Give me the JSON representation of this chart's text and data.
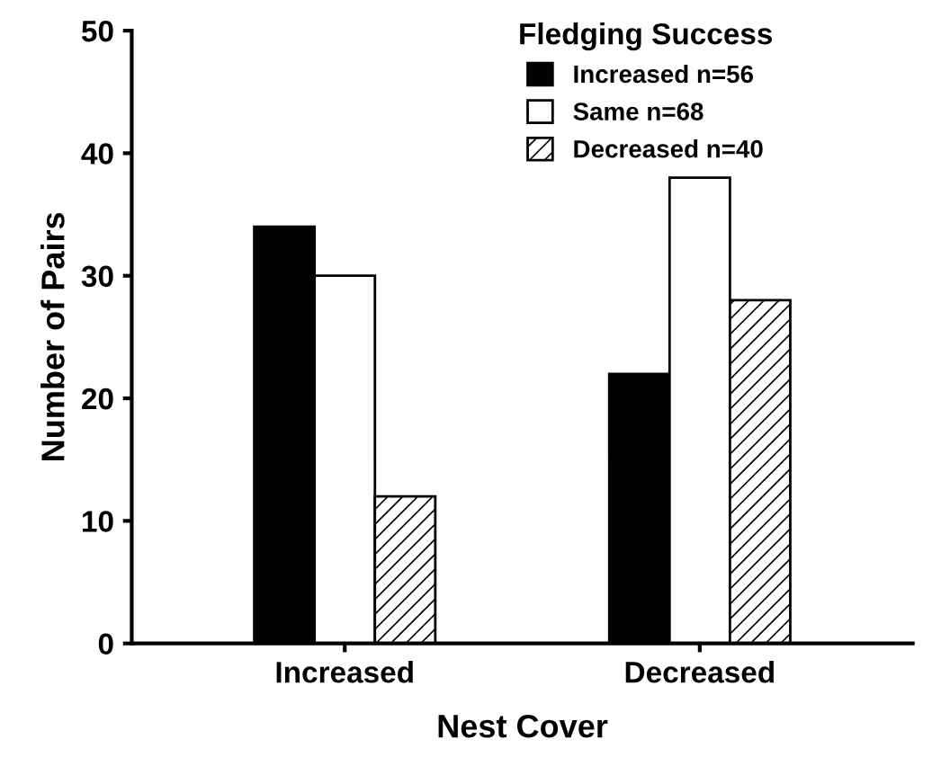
{
  "chart_data": {
    "type": "bar",
    "xlabel": "Nest Cover",
    "ylabel": "Number of Pairs",
    "legend_title": "Fledging Success",
    "categories": [
      "Increased",
      "Decreased"
    ],
    "series": [
      {
        "name": "Increased n=56",
        "color": "#000000",
        "values": [
          34,
          22
        ]
      },
      {
        "name": "Same n=68",
        "color": "#ffffff",
        "values": [
          30,
          38
        ]
      },
      {
        "name": "Decreased n=40",
        "color": "#000000",
        "values": [
          12,
          28
        ]
      }
    ],
    "ylim": [
      0,
      50
    ],
    "yticks": [
      0,
      10,
      20,
      30,
      40,
      50
    ],
    "grid": false,
    "legend": "top right"
  }
}
